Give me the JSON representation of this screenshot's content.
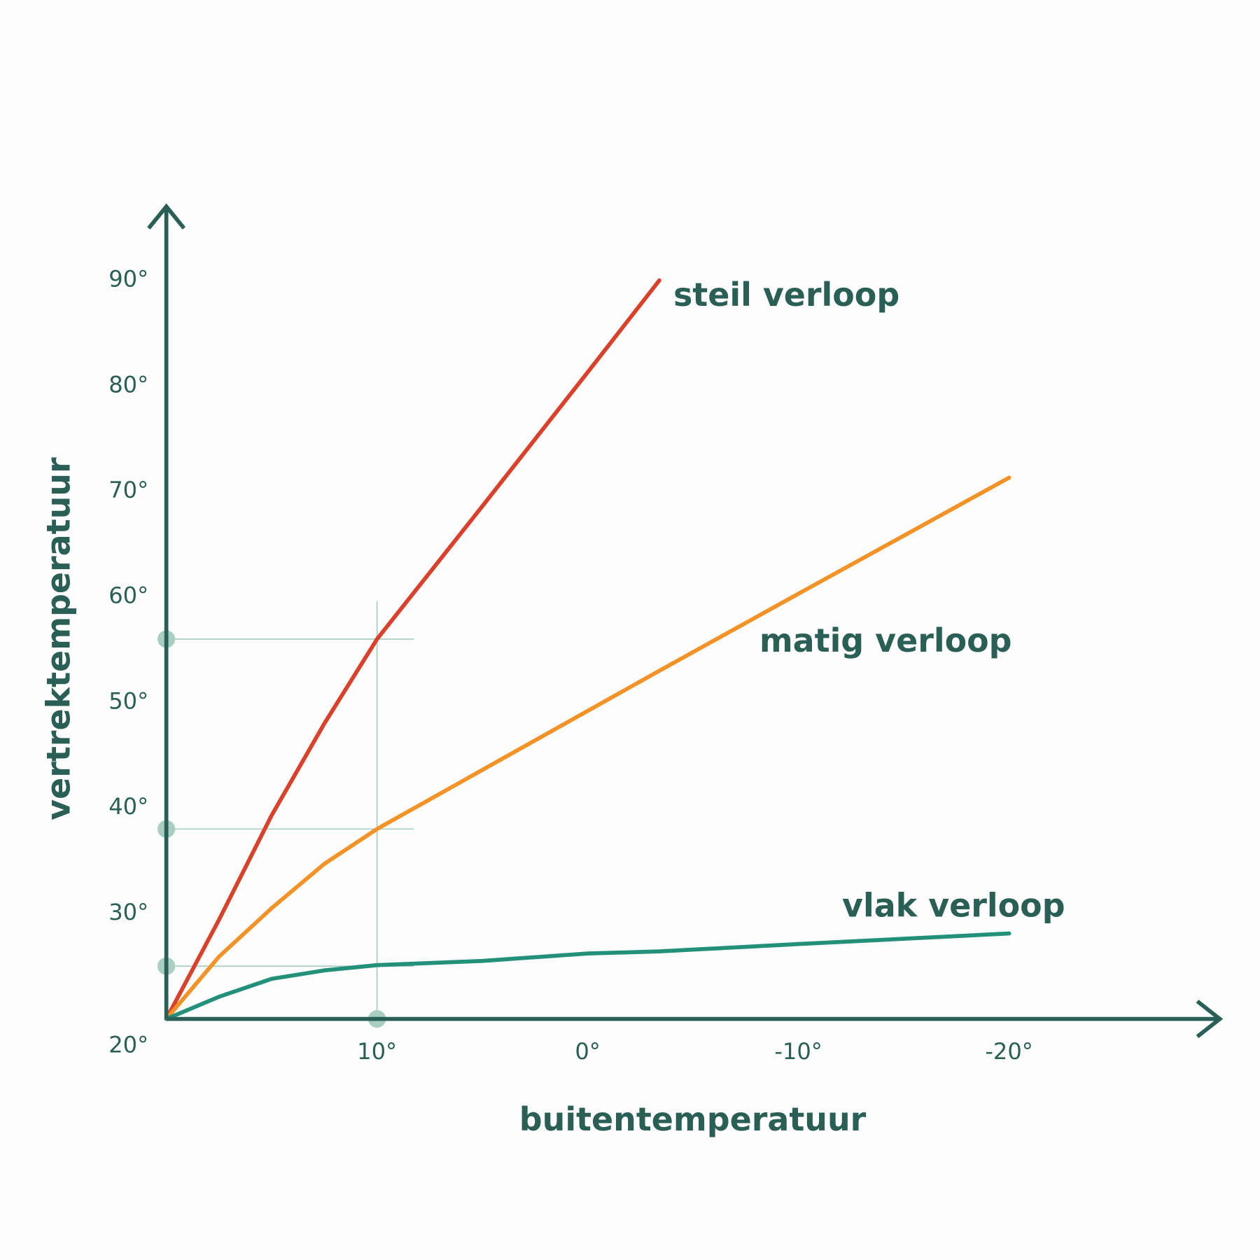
{
  "chart_data": {
    "type": "line",
    "x_label": "buitentemperatuur",
    "y_label": "vertrektemperatuur",
    "x": [
      20,
      17.5,
      15,
      12.5,
      10,
      5,
      0,
      -3.4,
      -10,
      -20
    ],
    "series": [
      {
        "name": "steil verloop",
        "color": "#d9412b",
        "values": [
          20,
          29.4,
          39.3,
          48,
          56,
          68.6,
          81.3,
          90,
          null,
          null
        ]
      },
      {
        "name": "matig verloop",
        "color": "#f39327",
        "values": [
          20,
          25.9,
          30.5,
          34.7,
          38,
          43.6,
          49.2,
          53,
          60.3,
          71.3
        ]
      },
      {
        "name": "vlak verloop",
        "color": "#23907a",
        "values": [
          20,
          22.1,
          23.8,
          24.6,
          25.1,
          25.5,
          26.2,
          26.4,
          27.1,
          28.1
        ]
      }
    ],
    "guides": {
      "x": 10,
      "y": [
        56,
        38,
        25
      ],
      "color": "#a9cfc2"
    },
    "xlim": [
      20,
      -30
    ],
    "ylim": [
      20,
      97
    ],
    "xticks": [
      {
        "value": 10,
        "label": "10°"
      },
      {
        "value": 0,
        "label": "0°"
      },
      {
        "value": -10,
        "label": "-10°"
      },
      {
        "value": -20,
        "label": "-20°"
      }
    ],
    "yticks": [
      {
        "value": 20,
        "label": "20°"
      },
      {
        "value": 30,
        "label": "30°"
      },
      {
        "value": 40,
        "label": "40°"
      },
      {
        "value": 50,
        "label": "50°"
      },
      {
        "value": 60,
        "label": "60°"
      },
      {
        "value": 70,
        "label": "70°"
      },
      {
        "value": 80,
        "label": "80°"
      },
      {
        "value": 90,
        "label": "90°"
      }
    ]
  }
}
